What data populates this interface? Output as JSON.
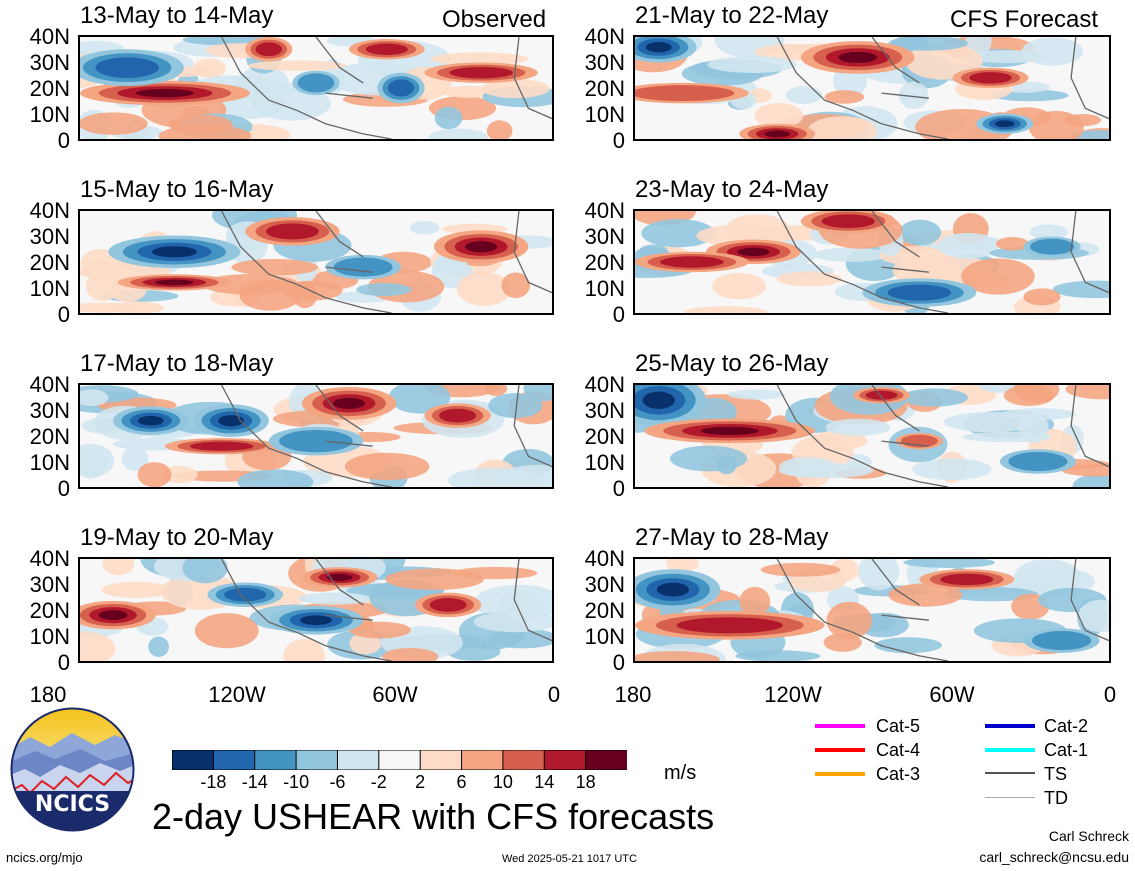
{
  "headers": {
    "left": "Observed",
    "right": "CFS Forecast"
  },
  "panels_left": [
    {
      "title": "13-May to 14-May"
    },
    {
      "title": "15-May to 16-May"
    },
    {
      "title": "17-May to 18-May"
    },
    {
      "title": "19-May to 20-May"
    }
  ],
  "panels_right": [
    {
      "title": "21-May to 22-May"
    },
    {
      "title": "23-May to 24-May"
    },
    {
      "title": "25-May to 26-May"
    },
    {
      "title": "27-May to 28-May"
    }
  ],
  "y_ticks": [
    "40N",
    "30N",
    "20N",
    "10N",
    "0"
  ],
  "x_ticks": [
    "180",
    "120W",
    "60W",
    "0"
  ],
  "colorbar": {
    "labels": [
      "-18",
      "-14",
      "-10",
      "-6",
      "-2",
      "2",
      "6",
      "10",
      "14",
      "18"
    ],
    "units": "m/s",
    "colors": [
      "#08306b",
      "#2166ac",
      "#4393c3",
      "#92c5de",
      "#d1e5f0",
      "#f7f7f7",
      "#fddbc7",
      "#f4a582",
      "#d6604d",
      "#b2182b",
      "#67001f"
    ]
  },
  "legend": {
    "items": [
      {
        "label": "Cat-5",
        "color": "#ff00ff"
      },
      {
        "label": "Cat-4",
        "color": "#ff0000"
      },
      {
        "label": "Cat-3",
        "color": "#ffa500"
      },
      {
        "label": "Cat-2",
        "color": "#0000cc"
      },
      {
        "label": "Cat-1",
        "color": "#00ffff"
      },
      {
        "label": "TS",
        "color": "#555555"
      },
      {
        "label": "TD",
        "color": "#aaaaaa"
      }
    ]
  },
  "logo": {
    "text": "NCICS"
  },
  "main_title": "2-day USHEAR with CFS forecasts",
  "footer": {
    "left": "ncics.org/mjo",
    "center": "Wed 2025-05-21 1017 UTC",
    "author": "Carl Schreck",
    "email": "carl_schreck@ncsu.edu"
  }
}
